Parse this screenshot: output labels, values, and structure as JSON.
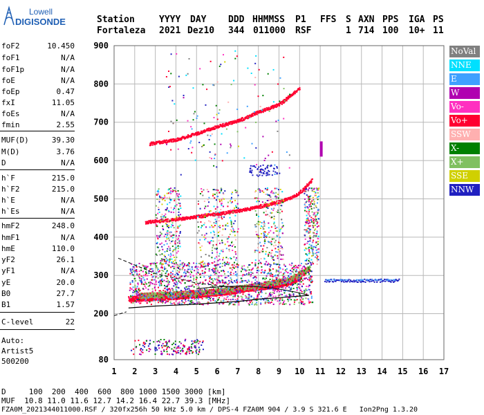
{
  "logo": {
    "line1": "Lowell",
    "line2": "DIGISONDE"
  },
  "header": {
    "labels": [
      "Station",
      "YYYY",
      "DAY",
      "DDD",
      "HHMMSS",
      "P1",
      "FFS",
      "S",
      "AXN",
      "PPS",
      "IGA",
      "PS"
    ],
    "values": [
      "Fortaleza",
      "2021",
      "Dez10",
      "344",
      "011000",
      "RSF",
      "",
      "1",
      "714",
      "100",
      "10+",
      "11"
    ]
  },
  "params": [
    {
      "name": "foF2",
      "value": "10.450"
    },
    {
      "name": "foF1",
      "value": "N/A"
    },
    {
      "name": "foF1p",
      "value": "N/A"
    },
    {
      "name": "foE",
      "value": "N/A"
    },
    {
      "name": "foEp",
      "value": "0.47"
    },
    {
      "name": "fxI",
      "value": "11.05"
    },
    {
      "name": "foEs",
      "value": "N/A"
    },
    {
      "name": "fmin",
      "value": "2.55"
    },
    {
      "name": "MUF(D)",
      "value": "39.30"
    },
    {
      "name": "M(D)",
      "value": "3.76"
    },
    {
      "name": "D",
      "value": "N/A"
    },
    {
      "name": "h`F",
      "value": "215.0"
    },
    {
      "name": "h`F2",
      "value": "215.0"
    },
    {
      "name": "h`E",
      "value": "N/A"
    },
    {
      "name": "h`Es",
      "value": "N/A"
    },
    {
      "name": "hmF2",
      "value": "248.0"
    },
    {
      "name": "hmF1",
      "value": "N/A"
    },
    {
      "name": "hmE",
      "value": "110.0"
    },
    {
      "name": "yF2",
      "value": "26.1"
    },
    {
      "name": "yF1",
      "value": "N/A"
    },
    {
      "name": "yE",
      "value": "20.0"
    },
    {
      "name": "B0",
      "value": "27.7"
    },
    {
      "name": "B1",
      "value": "1.57"
    },
    {
      "name": "C-level",
      "value": "22"
    }
  ],
  "auto": {
    "line1": "Auto:",
    "line2": "Artist5",
    "line3": "500200"
  },
  "legend": [
    {
      "label": "NoVal",
      "color": "#808080"
    },
    {
      "label": "NNE",
      "color": "#00e0ff"
    },
    {
      "label": "E",
      "color": "#3fa0ff"
    },
    {
      "label": "W",
      "color": "#b000b0"
    },
    {
      "label": "Vo-",
      "color": "#ff30c0"
    },
    {
      "label": "Vo+",
      "color": "#ff0030"
    },
    {
      "label": "SSW",
      "color": "#ffb0b0"
    },
    {
      "label": "X-",
      "color": "#008000"
    },
    {
      "label": "X+",
      "color": "#80c060"
    },
    {
      "label": "SSE",
      "color": "#d0d000"
    },
    {
      "label": "NNW",
      "color": "#2020c0"
    }
  ],
  "chart_data": {
    "type": "scatter",
    "xlim": [
      1,
      17
    ],
    "ylim": [
      80,
      900
    ],
    "xticks": [
      1,
      2,
      3,
      4,
      5,
      6,
      7,
      8,
      9,
      10,
      11,
      12,
      13,
      14,
      15,
      16,
      17
    ],
    "yticks": [
      80,
      200,
      300,
      400,
      500,
      600,
      700,
      800,
      900
    ],
    "grid": true,
    "traces": [
      {
        "name": "o-trace F2",
        "color": "#ff0030",
        "x": [
          1.7,
          3,
          4,
          5,
          6,
          7,
          8,
          9,
          9.6,
          10.0,
          10.3
        ],
        "y": [
          240,
          243,
          246,
          250,
          255,
          262,
          270,
          278,
          285,
          298,
          315
        ]
      },
      {
        "name": "x-trace F2",
        "color": "#80c060",
        "x": [
          2.2,
          4,
          6,
          8,
          9.5,
          10.5
        ],
        "y": [
          248,
          252,
          260,
          275,
          290,
          320
        ]
      },
      {
        "name": "2-hop",
        "color": "#ff0030",
        "x": [
          2.5,
          4,
          5,
          6,
          7,
          8,
          9,
          9.8,
          10.2,
          10.6
        ],
        "y": [
          440,
          448,
          455,
          462,
          470,
          480,
          494,
          510,
          528,
          552
        ]
      },
      {
        "name": "3-hop",
        "color": "#ff0030",
        "x": [
          2.7,
          4,
          5,
          6,
          7,
          8,
          9,
          10.0
        ],
        "y": [
          645,
          656,
          672,
          690,
          705,
          728,
          748,
          790
        ]
      }
    ],
    "profile": {
      "x": [
        1.7,
        3,
        5,
        7,
        8,
        9,
        10,
        10.45
      ],
      "y": [
        215,
        220,
        225,
        232,
        238,
        242,
        246,
        248
      ]
    }
  },
  "footer": {
    "line1": "D     100  200  400  600  800 1000 1500 3000 [km]",
    "line2": "MUF  10.8 11.0 11.6 12.7 14.2 16.4 22.7 39.3 [MHz]",
    "line3": "FZA0M_2021344011000.RSF / 320fx256h 50 kHz 5.0 km / DPS-4 FZA0M 904 / 3.9 S 321.6 E   Ion2Png 1.3.20"
  }
}
